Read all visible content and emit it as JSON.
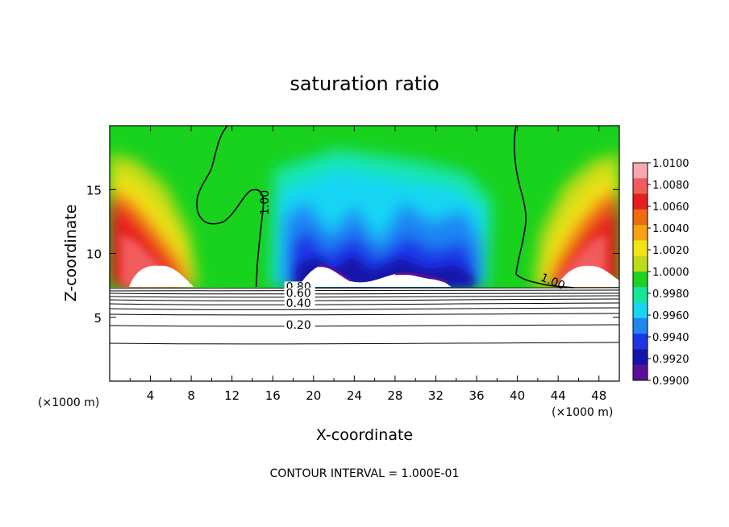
{
  "chart_data": {
    "type": "heatmap",
    "title": "saturation ratio",
    "xlabel": "X-coordinate",
    "ylabel": "Z-coordinate",
    "x_unit": "(×1000 m)",
    "z_unit": "(×1000 m)",
    "xlim": [
      0,
      50
    ],
    "ylim": [
      0,
      20
    ],
    "x_ticks": [
      4,
      8,
      12,
      16,
      20,
      24,
      28,
      32,
      36,
      40,
      44,
      48
    ],
    "y_ticks": [
      5,
      10,
      15
    ],
    "colorbar": {
      "values": [
        "1.0100",
        "1.0080",
        "1.0060",
        "1.0040",
        "1.0020",
        "1.0000",
        "0.9980",
        "0.9960",
        "0.9940",
        "0.9920",
        "0.9900"
      ],
      "colors": [
        "#f7a8b0",
        "#f25b5b",
        "#e61e1e",
        "#f06a12",
        "#f6a312",
        "#f2e412",
        "#bcdc16",
        "#1fd21f",
        "#16e69a",
        "#16d6f4",
        "#1f86f4",
        "#1e35e6",
        "#1414aa",
        "#5a0f9b"
      ]
    },
    "contour_labels": [
      {
        "text": "1.00",
        "x": 15.6,
        "z": 13.0
      },
      {
        "text": "1.00",
        "x": 42.2,
        "z": 7.9
      },
      {
        "text": "0.80",
        "x": 17.3,
        "z": 7.1
      },
      {
        "text": "0.60",
        "x": 17.3,
        "z": 6.6
      },
      {
        "text": "0.40",
        "x": 17.3,
        "z": 5.8
      },
      {
        "text": "0.20",
        "x": 17.3,
        "z": 4.1
      }
    ],
    "footer": "CONTOUR INTERVAL = 1.000E-01"
  }
}
